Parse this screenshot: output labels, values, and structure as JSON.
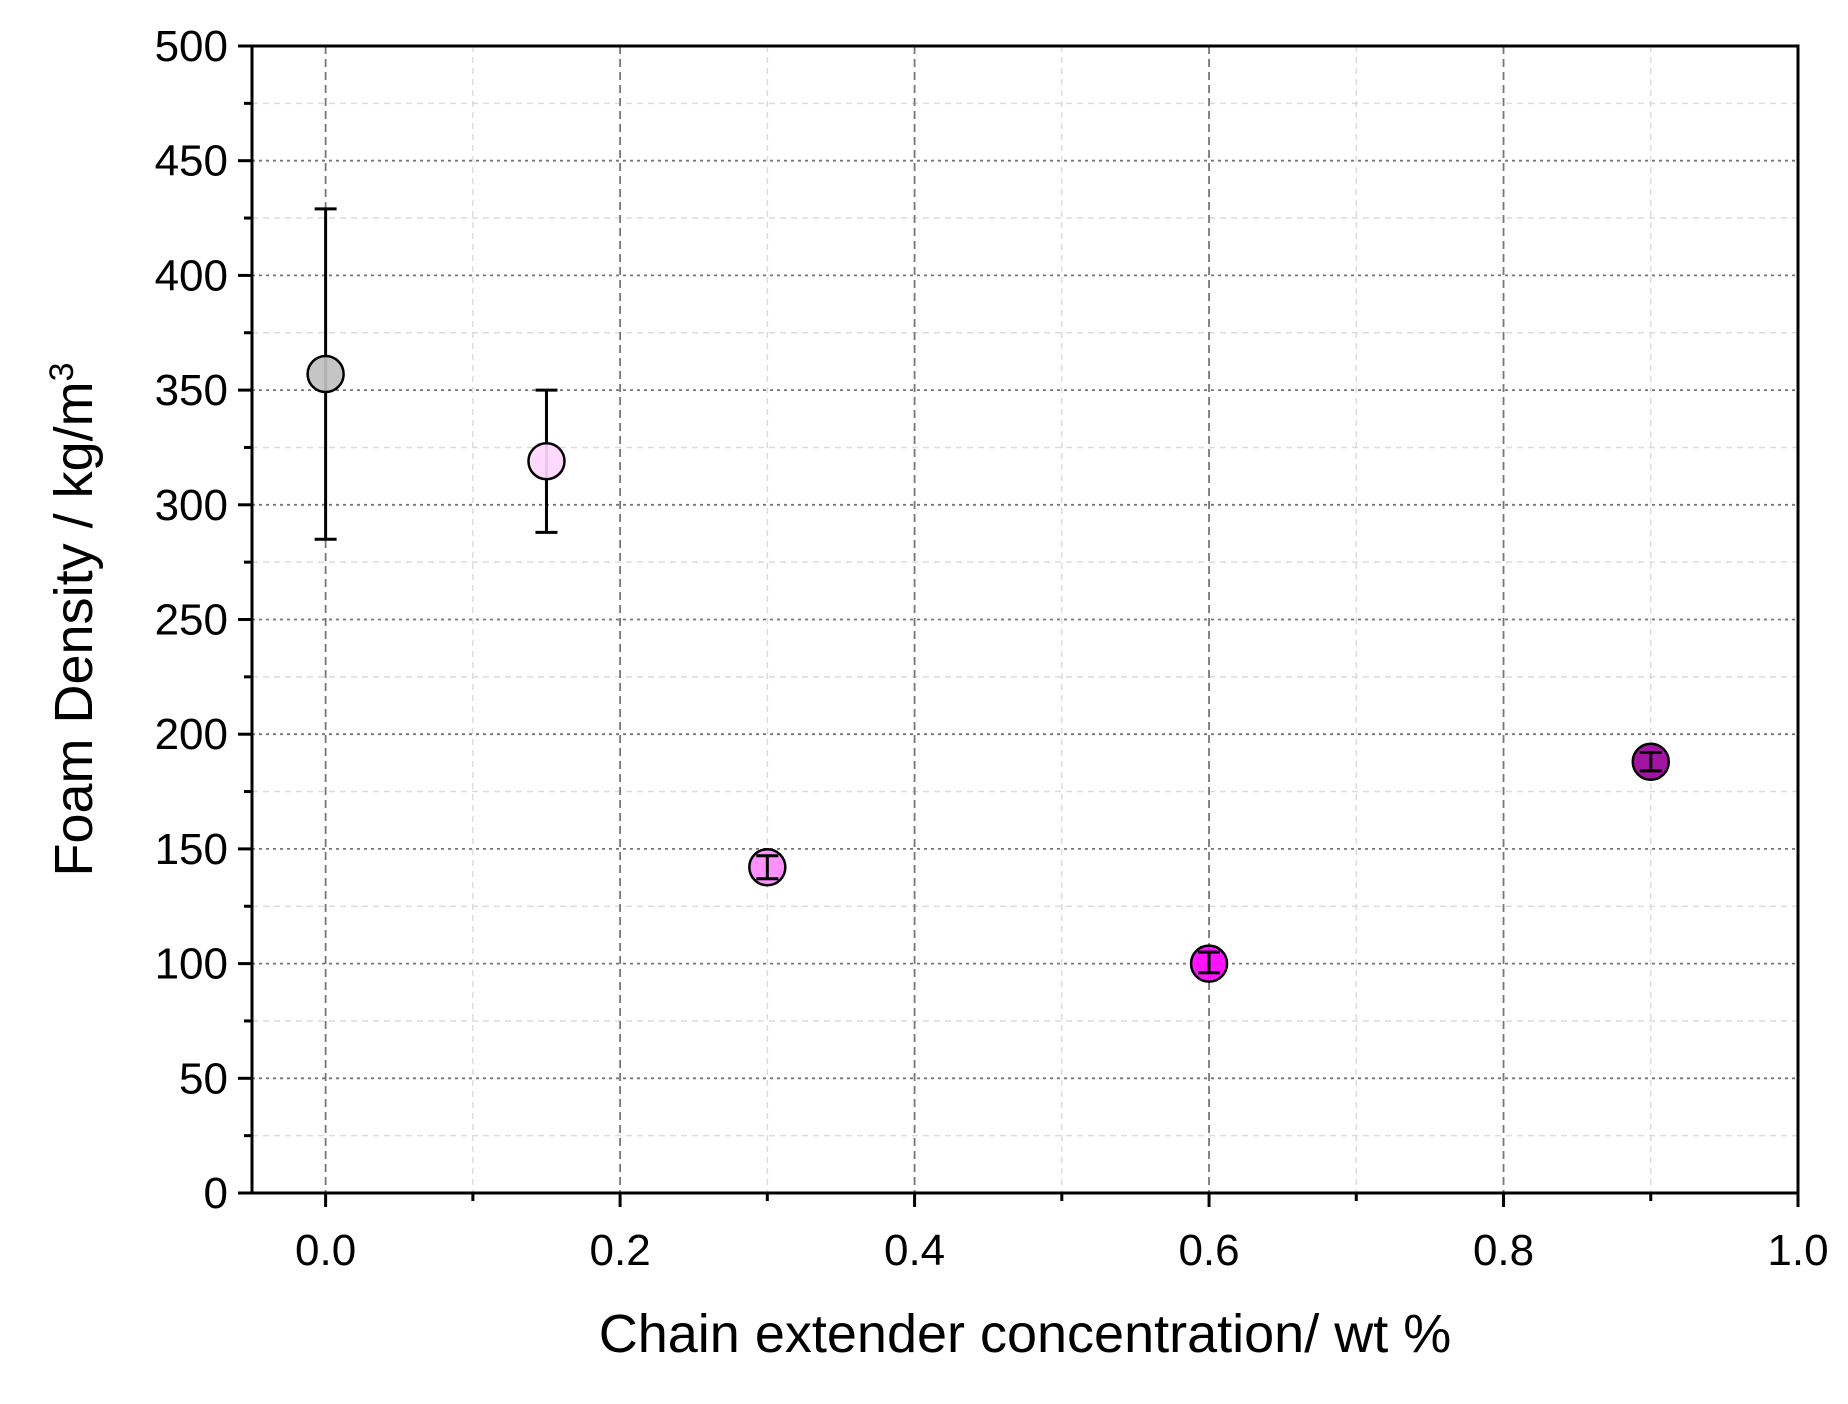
{
  "chart_data": {
    "type": "scatter",
    "title": "",
    "xlabel": "Chain extender concentration/ wt %",
    "ylabel_main": "Foam Density / kg/m",
    "ylabel_sup": "3",
    "xlim": [
      -0.05,
      1.0
    ],
    "ylim": [
      0,
      500
    ],
    "x_ticks": [
      0.0,
      0.2,
      0.4,
      0.6,
      0.8,
      1.0
    ],
    "x_tick_labels": [
      "0.0",
      "0.2",
      "0.4",
      "0.6",
      "0.8",
      "1.0"
    ],
    "x_minor_ticks": [
      0.1,
      0.3,
      0.5,
      0.7,
      0.9
    ],
    "y_ticks": [
      0,
      50,
      100,
      150,
      200,
      250,
      300,
      350,
      400,
      450,
      500
    ],
    "y_tick_labels": [
      "0",
      "50",
      "100",
      "150",
      "200",
      "250",
      "300",
      "350",
      "400",
      "450",
      "500"
    ],
    "y_minor_ticks": [
      25,
      75,
      125,
      175,
      225,
      275,
      325,
      375,
      425,
      475
    ],
    "grid": true,
    "legend": "none",
    "points": [
      {
        "x": 0.0,
        "y": 357,
        "err_low": 285,
        "err_high": 429,
        "color": "#c0c0c0"
      },
      {
        "x": 0.15,
        "y": 319,
        "err_low": 288,
        "err_high": 350,
        "color": "#ffd6ff"
      },
      {
        "x": 0.3,
        "y": 142,
        "err_low": 137,
        "err_high": 147,
        "color": "#ff88ff"
      },
      {
        "x": 0.6,
        "y": 100,
        "err_low": 96,
        "err_high": 105,
        "color": "#ff00ff"
      },
      {
        "x": 0.9,
        "y": 188,
        "err_low": 184,
        "err_high": 192,
        "color": "#9a009a"
      }
    ]
  }
}
